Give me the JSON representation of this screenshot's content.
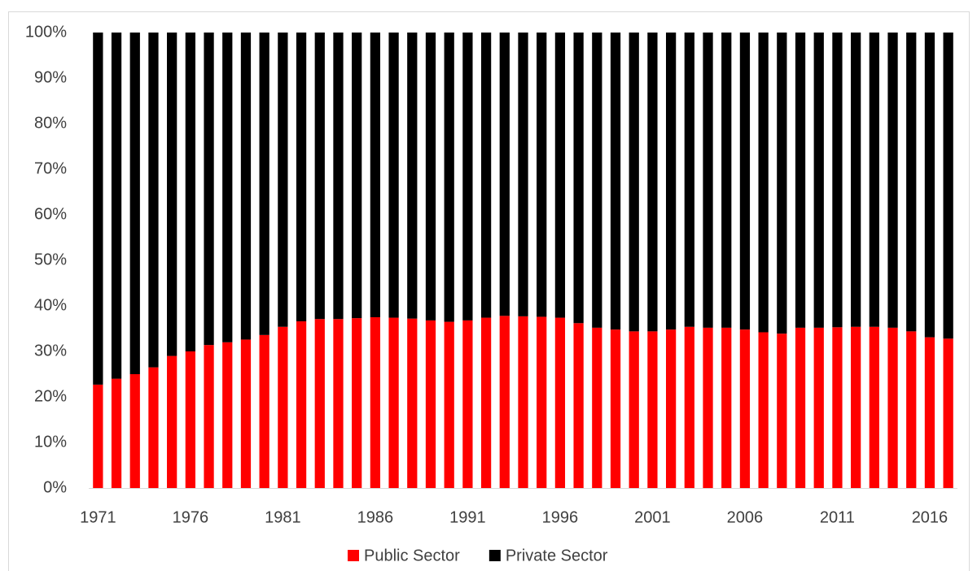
{
  "chart_data": {
    "type": "stacked_bar",
    "categories": [
      "1971",
      null,
      null,
      null,
      null,
      "1976",
      null,
      null,
      null,
      null,
      "1981",
      null,
      null,
      null,
      null,
      "1986",
      null,
      null,
      null,
      null,
      "1991",
      null,
      null,
      null,
      null,
      "1996",
      null,
      null,
      null,
      null,
      "2001",
      null,
      null,
      null,
      null,
      "2006",
      null,
      null,
      null,
      null,
      "2011",
      null,
      null,
      null,
      null,
      "2016",
      null
    ],
    "series": [
      {
        "name": "Public Sector",
        "color": "#ff0000",
        "values": [
          22.7,
          24,
          25,
          26.5,
          29,
          30,
          31.4,
          32,
          32.6,
          33.6,
          35.4,
          36.6,
          37.1,
          37.1,
          37.3,
          37.5,
          37.4,
          37.2,
          36.8,
          36.5,
          36.8,
          37.4,
          37.8,
          37.7,
          37.6,
          37.4,
          36.2,
          35.2,
          34.8,
          34.4,
          34.4,
          34.8,
          35.4,
          35.2,
          35.2,
          34.8,
          34.2,
          33.9,
          35.2,
          35.2,
          35.3,
          35.4,
          35.4,
          35.2,
          34.4,
          33.1,
          32.8
        ]
      },
      {
        "name": "Private Sector",
        "color": "#000000",
        "values": [
          77.3,
          76,
          75,
          73.5,
          71,
          70,
          68.6,
          68,
          67.4,
          66.4,
          64.6,
          63.4,
          62.9,
          62.9,
          62.7,
          62.5,
          62.6,
          62.8,
          63.2,
          63.5,
          63.2,
          62.6,
          62.2,
          62.3,
          62.4,
          62.6,
          63.8,
          64.8,
          65.2,
          65.6,
          65.6,
          65.2,
          64.6,
          64.8,
          64.8,
          65.2,
          65.8,
          66.1,
          64.8,
          64.8,
          64.7,
          64.6,
          64.6,
          64.8,
          65.6,
          66.9,
          67.2
        ]
      }
    ],
    "ylim": [
      0,
      100
    ],
    "yticks": [
      {
        "value": 0,
        "label": "0%"
      },
      {
        "value": 10,
        "label": "10%"
      },
      {
        "value": 20,
        "label": "20%"
      },
      {
        "value": 30,
        "label": "30%"
      },
      {
        "value": 40,
        "label": "40%"
      },
      {
        "value": 50,
        "label": "50%"
      },
      {
        "value": 60,
        "label": "60%"
      },
      {
        "value": 70,
        "label": "70%"
      },
      {
        "value": 80,
        "label": "80%"
      },
      {
        "value": 90,
        "label": "90%"
      },
      {
        "value": 100,
        "label": "100%"
      }
    ],
    "legend": "bottom"
  }
}
